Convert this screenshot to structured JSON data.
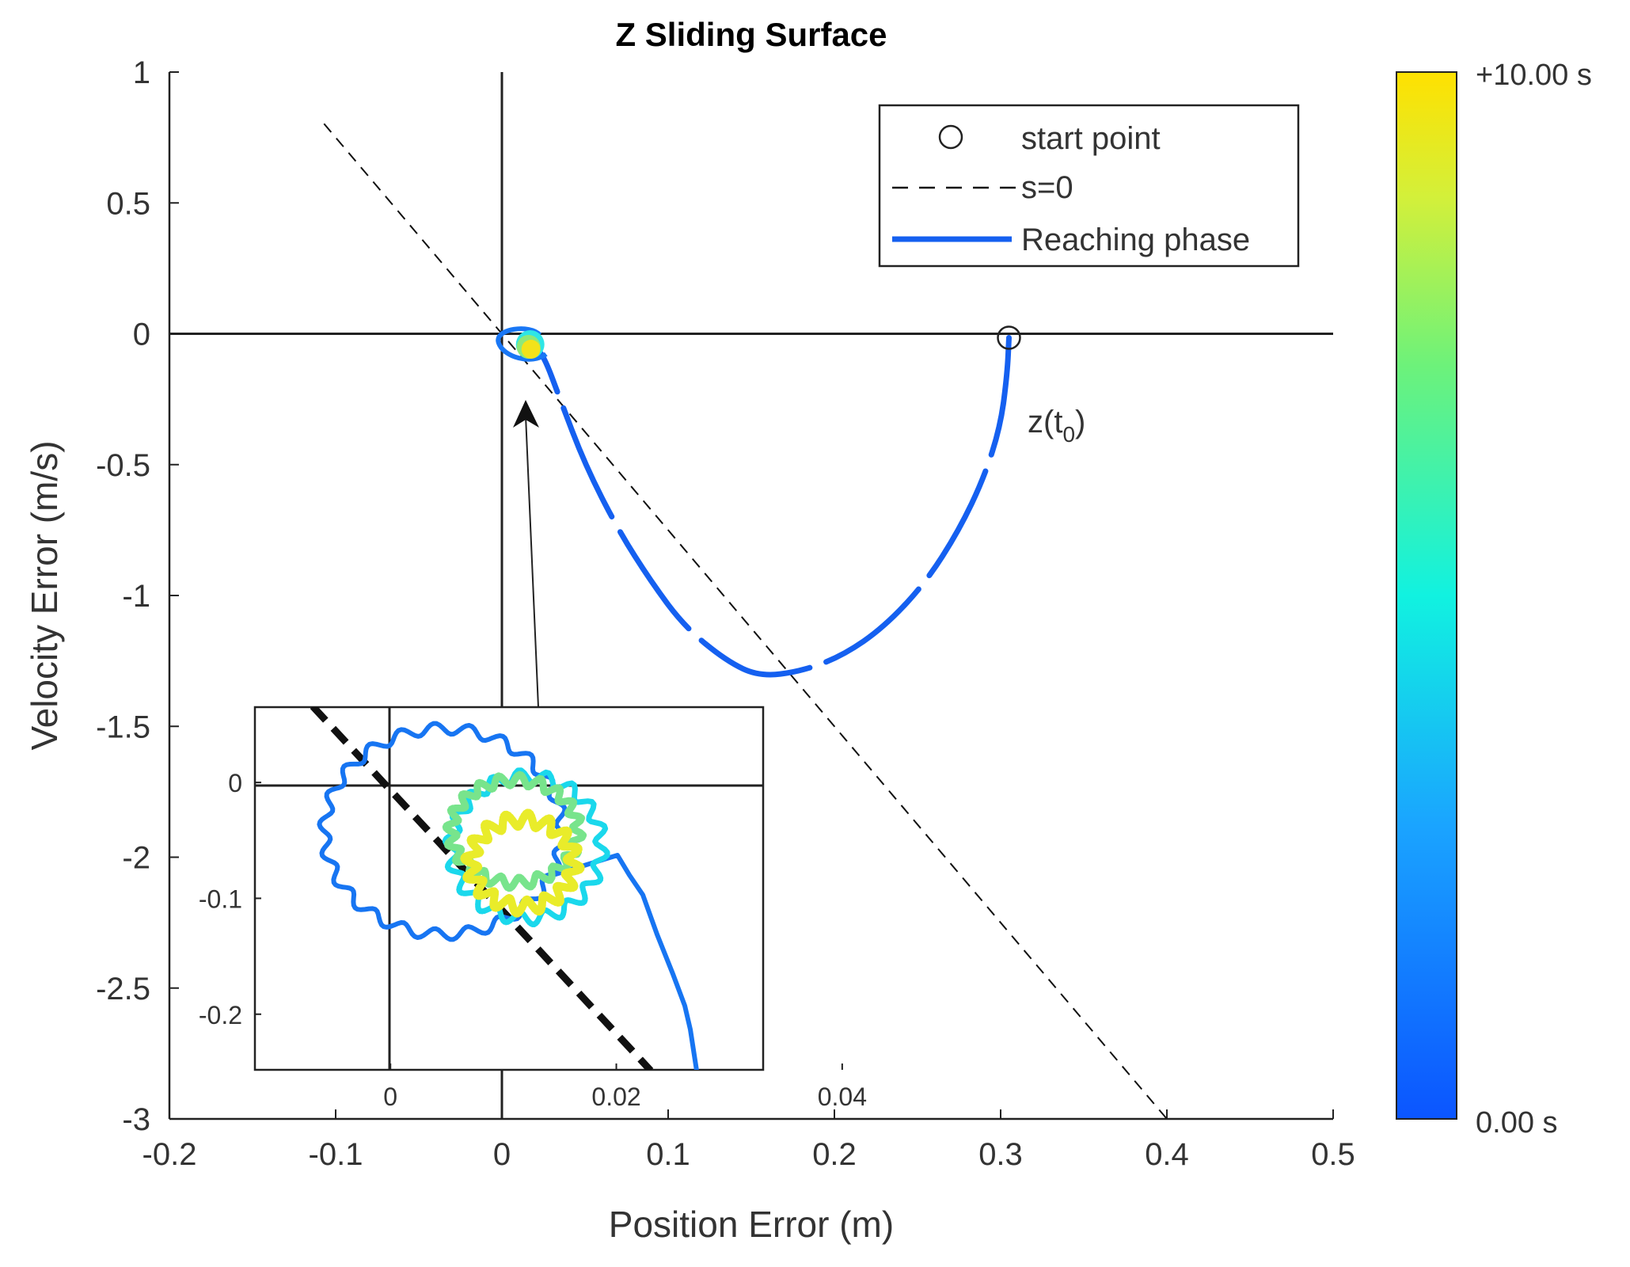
{
  "chart_data": {
    "type": "line",
    "title": "Z Sliding Surface",
    "xlabel": "Position Error (m)",
    "ylabel": "Velocity Error (m/s)",
    "xlim": [
      -0.2,
      0.5
    ],
    "ylim": [
      -3,
      1
    ],
    "xticks": [
      "-0.2",
      "-0.1",
      "0",
      "0.1",
      "0.2",
      "0.3",
      "0.4",
      "0.5"
    ],
    "yticks": [
      "1",
      "0.5",
      "0",
      "-0.5",
      "-1",
      "-1.5",
      "-2",
      "-2.5",
      "-3"
    ],
    "legend": {
      "placement": "top-right",
      "entries": [
        "start point",
        "s=0",
        "Reaching phase"
      ]
    },
    "colorbar": {
      "min_label": "0.00 s",
      "max_label": "+10.00 s"
    },
    "annotation": "z(t0)",
    "start_point": [
      0.305,
      -0.015
    ],
    "sliding_line": {
      "slope": -7.5,
      "x_range": [
        -0.107,
        0.405
      ]
    },
    "reaching_phase": {
      "x": [
        0.305,
        0.304,
        0.3,
        0.29,
        0.275,
        0.255,
        0.23,
        0.205,
        0.18,
        0.155,
        0.135,
        0.11,
        0.09,
        0.07,
        0.05,
        0.035,
        0.025,
        0.018,
        0.014
      ],
      "y": [
        -0.015,
        -0.15,
        -0.35,
        -0.55,
        -0.75,
        -0.95,
        -1.12,
        -1.23,
        -1.29,
        -1.31,
        -1.25,
        -1.12,
        -0.95,
        -0.75,
        -0.5,
        -0.25,
        -0.08,
        -0.04,
        -0.04
      ]
    },
    "settled_cluster": {
      "x": [
        -0.002,
        0.018
      ],
      "y": [
        -0.12,
        0.02
      ],
      "center": [
        0.017,
        -0.05
      ]
    },
    "inset": {
      "xticks": [
        "0",
        "0.02",
        "0.04"
      ],
      "yticks": [
        "0",
        "-0.1",
        "-0.2"
      ],
      "xlim": [
        -0.012,
        0.033
      ],
      "ylim": [
        -0.248,
        0.065
      ]
    }
  }
}
